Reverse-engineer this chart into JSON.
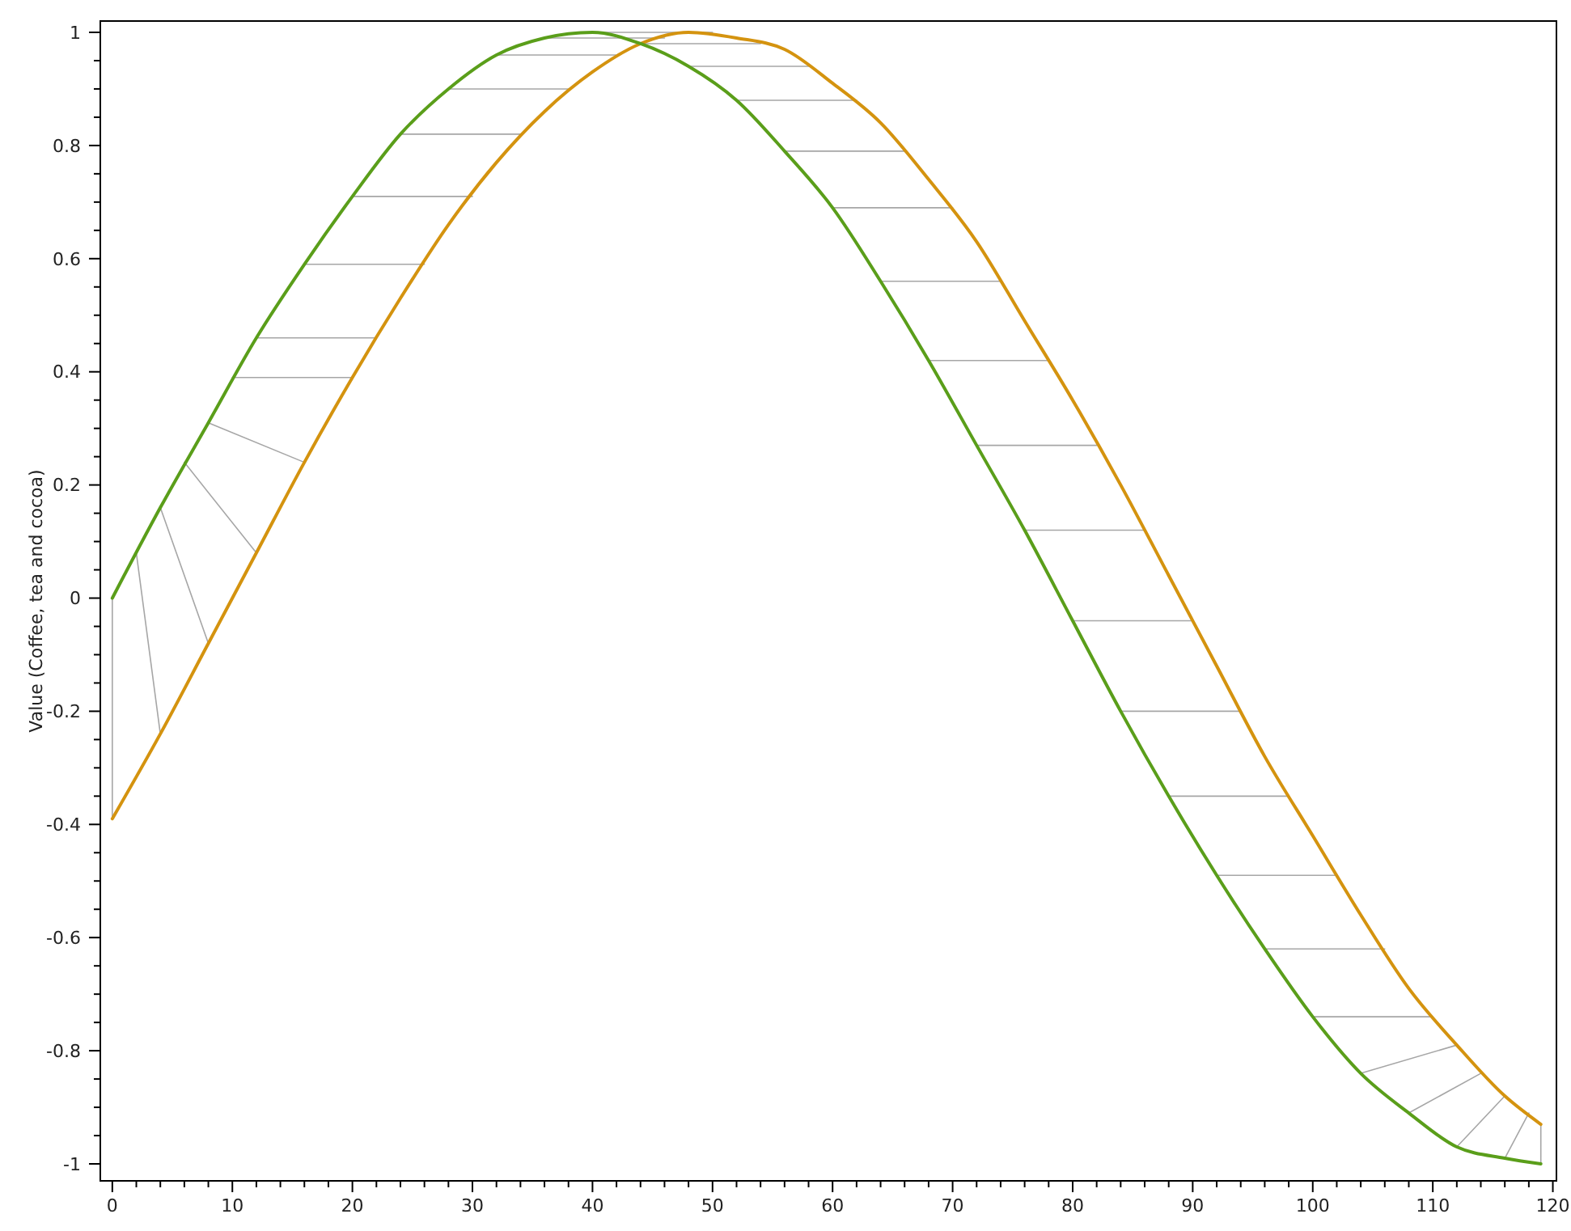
{
  "chart_data": {
    "type": "line",
    "ylabel": "Value (Coffee, tea and cocoa)",
    "xlim": [
      -1,
      120.3
    ],
    "ylim": [
      -1.03,
      1.02
    ],
    "grid": false,
    "marker": "none",
    "line_style": "solid",
    "xticks": [
      0,
      {
        "value": 2,
        "label": null
      },
      {
        "value": 4,
        "label": null
      },
      {
        "value": 6,
        "label": null
      },
      {
        "value": 8,
        "label": null
      },
      10,
      {
        "value": 12,
        "label": null
      },
      {
        "value": 14,
        "label": null
      },
      {
        "value": 16,
        "label": null
      },
      {
        "value": 18,
        "label": null
      },
      20,
      {
        "value": 22,
        "label": null
      },
      {
        "value": 24,
        "label": null
      },
      {
        "value": 26,
        "label": null
      },
      {
        "value": 28,
        "label": null
      },
      30,
      {
        "value": 32,
        "label": null
      },
      {
        "value": 34,
        "label": null
      },
      {
        "value": 36,
        "label": null
      },
      {
        "value": 38,
        "label": null
      },
      40,
      {
        "value": 42,
        "label": null
      },
      {
        "value": 44,
        "label": null
      },
      {
        "value": 46,
        "label": null
      },
      {
        "value": 48,
        "label": null
      },
      50,
      {
        "value": 52,
        "label": null
      },
      {
        "value": 54,
        "label": null
      },
      {
        "value": 56,
        "label": null
      },
      {
        "value": 58,
        "label": null
      },
      60,
      {
        "value": 62,
        "label": null
      },
      {
        "value": 64,
        "label": null
      },
      {
        "value": 66,
        "label": null
      },
      {
        "value": 68,
        "label": null
      },
      70,
      {
        "value": 72,
        "label": null
      },
      {
        "value": 74,
        "label": null
      },
      {
        "value": 76,
        "label": null
      },
      {
        "value": 78,
        "label": null
      },
      80,
      {
        "value": 82,
        "label": null
      },
      {
        "value": 84,
        "label": null
      },
      {
        "value": 86,
        "label": null
      },
      {
        "value": 88,
        "label": null
      },
      90,
      {
        "value": 92,
        "label": null
      },
      {
        "value": 94,
        "label": null
      },
      {
        "value": 96,
        "label": null
      },
      {
        "value": 98,
        "label": null
      },
      100,
      {
        "value": 102,
        "label": null
      },
      {
        "value": 104,
        "label": null
      },
      {
        "value": 106,
        "label": null
      },
      {
        "value": 108,
        "label": null
      },
      110,
      {
        "value": 112,
        "label": null
      },
      {
        "value": 114,
        "label": null
      },
      {
        "value": 116,
        "label": null
      },
      {
        "value": 118,
        "label": null
      },
      120
    ],
    "yticks": [
      -1,
      {
        "value": -0.95,
        "label": null
      },
      {
        "value": -0.9,
        "label": null
      },
      {
        "value": -0.85,
        "label": null
      },
      -0.8,
      {
        "value": -0.75,
        "label": null
      },
      {
        "value": -0.7,
        "label": null
      },
      {
        "value": -0.65,
        "label": null
      },
      -0.6,
      {
        "value": -0.55,
        "label": null
      },
      {
        "value": -0.5,
        "label": null
      },
      {
        "value": -0.45,
        "label": null
      },
      -0.4,
      {
        "value": -0.35,
        "label": null
      },
      {
        "value": -0.3,
        "label": null
      },
      {
        "value": -0.25,
        "label": null
      },
      -0.2,
      {
        "value": -0.15,
        "label": null
      },
      {
        "value": -0.1,
        "label": null
      },
      {
        "value": -0.05,
        "label": null
      },
      0,
      {
        "value": 0.05,
        "label": null
      },
      {
        "value": 0.1,
        "label": null
      },
      {
        "value": 0.15,
        "label": null
      },
      0.2,
      {
        "value": 0.25,
        "label": null
      },
      {
        "value": 0.3,
        "label": null
      },
      {
        "value": 0.35,
        "label": null
      },
      0.4,
      {
        "value": 0.45,
        "label": null
      },
      {
        "value": 0.5,
        "label": null
      },
      {
        "value": 0.55,
        "label": null
      },
      0.6,
      {
        "value": 0.65,
        "label": null
      },
      {
        "value": 0.7,
        "label": null
      },
      {
        "value": 0.75,
        "label": null
      },
      0.8,
      {
        "value": 0.85,
        "label": null
      },
      {
        "value": 0.9,
        "label": null
      },
      {
        "value": 0.95,
        "label": null
      },
      1
    ],
    "series": [
      {
        "color": "#a6a6a6",
        "x": [
          0,
          0,
          null,
          2,
          4,
          null,
          4,
          8,
          null,
          6,
          12,
          null,
          8,
          16,
          null,
          10,
          20,
          null,
          12,
          22,
          null,
          16,
          26,
          null,
          20,
          30,
          null,
          24,
          34,
          null,
          28,
          38,
          null,
          32,
          42,
          null,
          36,
          46,
          null,
          40,
          50,
          null,
          44,
          54,
          null,
          48,
          58,
          null,
          52,
          62,
          null,
          56,
          66,
          null,
          60,
          70,
          null,
          64,
          74,
          null,
          68,
          78,
          null,
          72,
          82,
          null,
          76,
          86,
          null,
          80,
          90,
          null,
          84,
          94,
          null,
          88,
          98,
          null,
          92,
          102,
          null,
          96,
          106,
          null,
          100,
          110,
          null,
          104,
          112,
          null,
          108,
          114,
          null,
          112,
          116,
          null,
          116,
          118,
          null,
          119,
          119
        ],
        "values": [
          0,
          -0.39,
          null,
          0.08,
          -0.24,
          null,
          0.16,
          -0.08,
          null,
          0.24,
          0.08,
          null,
          0.31,
          0.24,
          null,
          0.39,
          0.39,
          null,
          0.46,
          0.46,
          null,
          0.59,
          0.59,
          null,
          0.71,
          0.71,
          null,
          0.82,
          0.82,
          null,
          0.9,
          0.9,
          null,
          0.96,
          0.96,
          null,
          0.99,
          0.99,
          null,
          1,
          1,
          null,
          0.98,
          0.98,
          null,
          0.94,
          0.94,
          null,
          0.88,
          0.88,
          null,
          0.79,
          0.79,
          null,
          0.69,
          0.69,
          null,
          0.56,
          0.56,
          null,
          0.42,
          0.42,
          null,
          0.27,
          0.27,
          null,
          0.12,
          0.12,
          null,
          -0.04,
          -0.04,
          null,
          -0.2,
          -0.2,
          null,
          -0.35,
          -0.35,
          null,
          -0.49,
          -0.49,
          null,
          -0.62,
          -0.62,
          null,
          -0.74,
          -0.74,
          null,
          -0.84,
          -0.79,
          null,
          -0.91,
          -0.84,
          null,
          -0.97,
          -0.88,
          null,
          -0.99,
          -0.91,
          null,
          -1,
          -0.93
        ]
      },
      {
        "color": "#d4930f",
        "x": [
          0,
          4,
          8,
          12,
          16,
          20,
          24,
          28,
          32,
          36,
          40,
          44,
          48,
          52,
          56,
          60,
          64,
          68,
          72,
          76,
          80,
          84,
          88,
          92,
          96,
          100,
          104,
          108,
          112,
          116,
          119
        ],
        "values": [
          -0.39,
          -0.24,
          -0.08,
          0.08,
          0.24,
          0.39,
          0.53,
          0.66,
          0.77,
          0.86,
          0.93,
          0.98,
          1,
          0.99,
          0.97,
          0.91,
          0.84,
          0.74,
          0.63,
          0.49,
          0.35,
          0.2,
          0.04,
          -0.12,
          -0.28,
          -0.42,
          -0.56,
          -0.69,
          -0.79,
          -0.88,
          -0.93
        ]
      },
      {
        "color": "#5a9e1a",
        "x": [
          0,
          4,
          8,
          12,
          16,
          20,
          24,
          28,
          32,
          36,
          40,
          44,
          48,
          52,
          56,
          60,
          64,
          68,
          72,
          76,
          80,
          84,
          88,
          92,
          96,
          100,
          104,
          108,
          112,
          116,
          119
        ],
        "values": [
          0,
          0.16,
          0.31,
          0.46,
          0.59,
          0.71,
          0.82,
          0.9,
          0.96,
          0.99,
          1,
          0.98,
          0.94,
          0.88,
          0.79,
          0.69,
          0.56,
          0.42,
          0.27,
          0.12,
          -0.04,
          -0.2,
          -0.35,
          -0.49,
          -0.62,
          -0.74,
          -0.84,
          -0.91,
          -0.97,
          -0.99,
          -1
        ]
      }
    ]
  }
}
